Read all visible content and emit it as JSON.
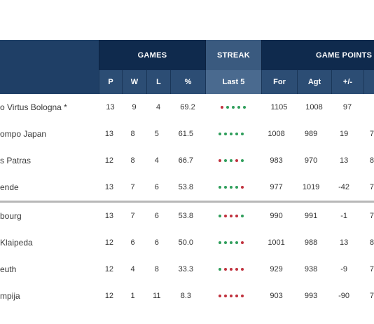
{
  "header": {
    "games": "GAMES",
    "streak": "STREAK",
    "game_points": "GAME POINTS",
    "columns": {
      "p": "P",
      "w": "W",
      "l": "L",
      "pct": "%",
      "last5": "Last 5",
      "for": "For",
      "agt": "Agt",
      "pm": "+/-"
    }
  },
  "colors": {
    "win": "#2f9e5b",
    "loss": "#c0313d",
    "header_dark": "#0f2a4d"
  },
  "rows": [
    {
      "team": "o Virtus Bologna *",
      "p": "13",
      "w": "9",
      "l": "4",
      "pct": "69.2",
      "streak": [
        "L",
        "W",
        "W",
        "W",
        "W"
      ],
      "for": "1105",
      "agt": "1008",
      "pm": "97",
      "extra": ""
    },
    {
      "team": "ompo Japan",
      "p": "13",
      "w": "8",
      "l": "5",
      "pct": "61.5",
      "streak": [
        "W",
        "W",
        "W",
        "W",
        "W"
      ],
      "for": "1008",
      "agt": "989",
      "pm": "19",
      "extra": "7"
    },
    {
      "team": "s Patras",
      "p": "12",
      "w": "8",
      "l": "4",
      "pct": "66.7",
      "streak": [
        "L",
        "W",
        "W",
        "L",
        "W"
      ],
      "for": "983",
      "agt": "970",
      "pm": "13",
      "extra": "8"
    },
    {
      "team": "ende",
      "p": "13",
      "w": "7",
      "l": "6",
      "pct": "53.8",
      "streak": [
        "W",
        "W",
        "W",
        "W",
        "L"
      ],
      "for": "977",
      "agt": "1019",
      "pm": "-42",
      "extra": "7"
    },
    {
      "team": "bourg",
      "p": "13",
      "w": "7",
      "l": "6",
      "pct": "53.8",
      "streak": [
        "W",
        "L",
        "L",
        "L",
        "W"
      ],
      "for": "990",
      "agt": "991",
      "pm": "-1",
      "extra": "7"
    },
    {
      "team": "Klaipeda",
      "p": "12",
      "w": "6",
      "l": "6",
      "pct": "50.0",
      "streak": [
        "W",
        "W",
        "W",
        "W",
        "L"
      ],
      "for": "1001",
      "agt": "988",
      "pm": "13",
      "extra": "8"
    },
    {
      "team": "euth",
      "p": "12",
      "w": "4",
      "l": "8",
      "pct": "33.3",
      "streak": [
        "W",
        "L",
        "L",
        "L",
        "L"
      ],
      "for": "929",
      "agt": "938",
      "pm": "-9",
      "extra": "7"
    },
    {
      "team": "mpija",
      "p": "12",
      "w": "1",
      "l": "11",
      "pct": "8.3",
      "streak": [
        "L",
        "L",
        "L",
        "L",
        "L"
      ],
      "for": "903",
      "agt": "993",
      "pm": "-90",
      "extra": "7"
    }
  ]
}
